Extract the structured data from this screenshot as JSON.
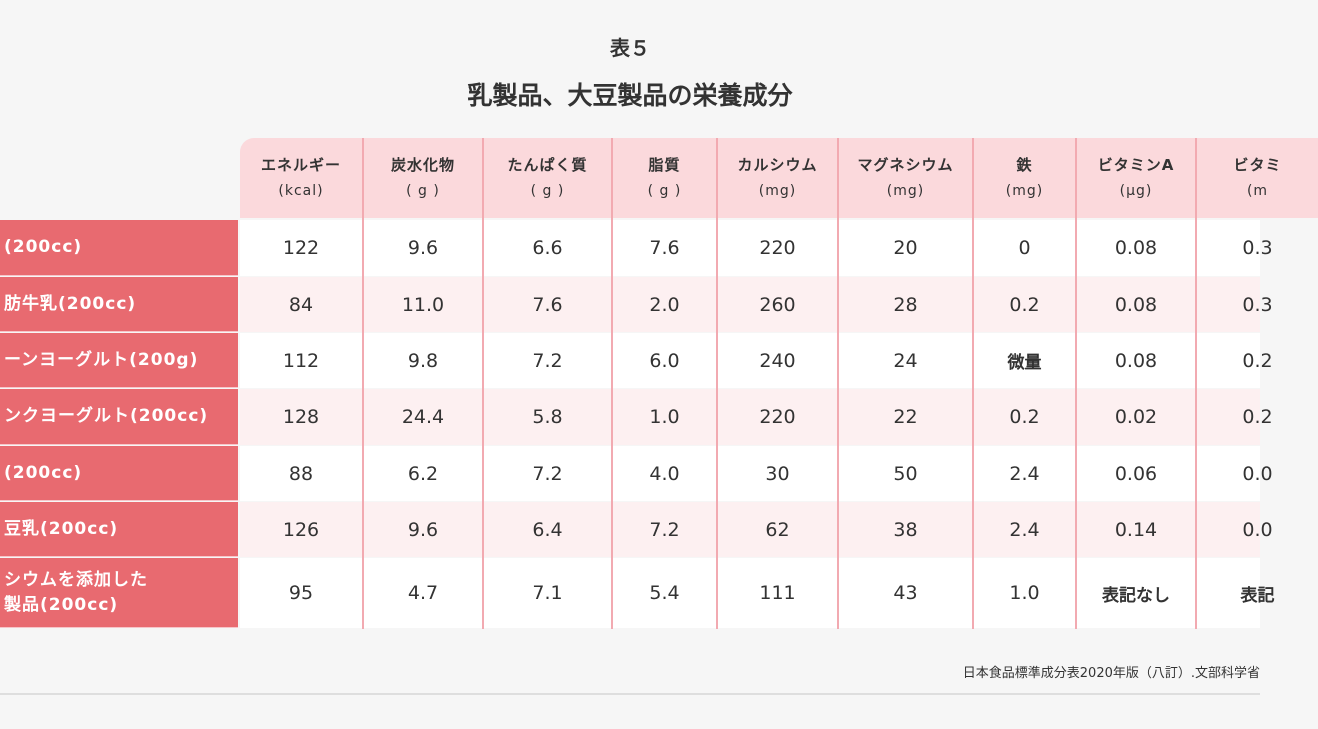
{
  "header": {
    "number": "表５",
    "title": "乳製品、大豆製品の栄養成分"
  },
  "table": {
    "columns": [
      {
        "name": "エネルギー",
        "unit": "(kcal)"
      },
      {
        "name": "炭水化物",
        "unit": "( g )"
      },
      {
        "name": "たんぱく質",
        "unit": "( g )"
      },
      {
        "name": "脂質",
        "unit": "( g )"
      },
      {
        "name": "カルシウム",
        "unit": "(mg)"
      },
      {
        "name": "マグネシウム",
        "unit": "(mg)"
      },
      {
        "name": "鉄",
        "unit": "(mg)"
      },
      {
        "name": "ビタミンA",
        "unit": "(µg)"
      },
      {
        "name": "ビタミ",
        "unit": "(m"
      }
    ],
    "rows": [
      {
        "label": [
          "(200cc)"
        ],
        "values": [
          "122",
          "9.6",
          "6.6",
          "7.6",
          "220",
          "20",
          "0",
          "0.08",
          "0.3"
        ]
      },
      {
        "label": [
          "肪牛乳(200cc)"
        ],
        "values": [
          "84",
          "11.0",
          "7.6",
          "2.0",
          "260",
          "28",
          "0.2",
          "0.08",
          "0.3"
        ]
      },
      {
        "label": [
          "ーンヨーグルト(200g)"
        ],
        "values": [
          "112",
          "9.8",
          "7.2",
          "6.0",
          "240",
          "24",
          "微量",
          "0.08",
          "0.2"
        ]
      },
      {
        "label": [
          "ンクヨーグルト(200cc)"
        ],
        "values": [
          "128",
          "24.4",
          "5.8",
          "1.0",
          "220",
          "22",
          "0.2",
          "0.02",
          "0.2"
        ]
      },
      {
        "label": [
          "(200cc)"
        ],
        "values": [
          "88",
          "6.2",
          "7.2",
          "4.0",
          "30",
          "50",
          "2.4",
          "0.06",
          "0.0"
        ]
      },
      {
        "label": [
          "豆乳(200cc)"
        ],
        "values": [
          "126",
          "9.6",
          "6.4",
          "7.2",
          "62",
          "38",
          "2.4",
          "0.14",
          "0.0"
        ]
      },
      {
        "label": [
          "シウムを添加した",
          "製品(200cc)"
        ],
        "values": [
          "95",
          "4.7",
          "7.1",
          "5.4",
          "111",
          "43",
          "1.0",
          "表記なし",
          "表記"
        ]
      }
    ]
  },
  "footer": {
    "source": "日本食品標準成分表2020年版（八訂）.文部科学省"
  }
}
